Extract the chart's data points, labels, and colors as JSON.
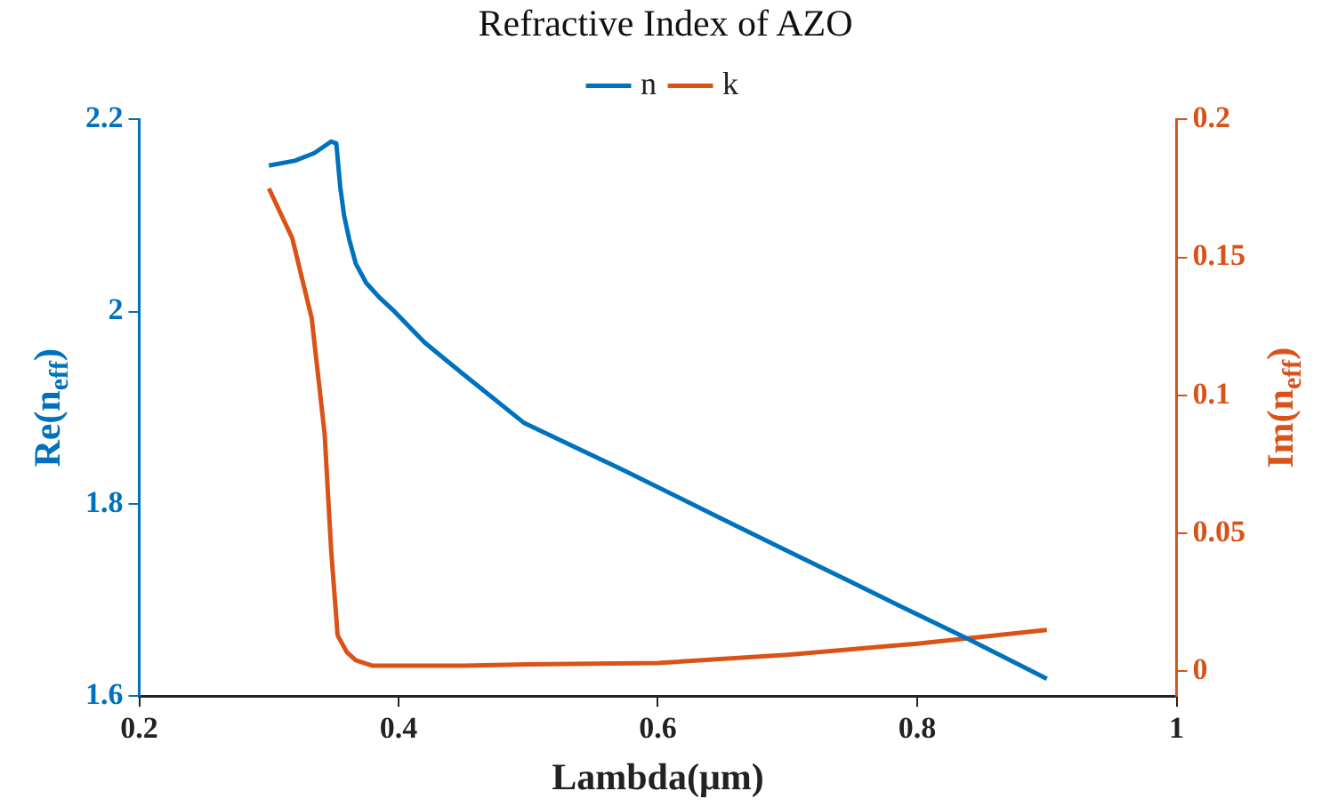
{
  "chart_data": {
    "type": "line",
    "title": "Refractive Index of AZO",
    "xlabel": "Lambda(μm)",
    "ylabel": "Re(n$_{eff}$)",
    "y2label": "Im(n$_{eff}$)",
    "xlim": [
      0.2,
      1
    ],
    "xticks": [
      0.2,
      0.4,
      0.6,
      0.8,
      1
    ],
    "ylim": [
      1.6,
      2.2
    ],
    "yticks": [
      1.6,
      1.8,
      2,
      2.2
    ],
    "y2lim": [
      -0.009,
      0.2
    ],
    "y2ticks": [
      0,
      0.05,
      0.1,
      0.15,
      0.2
    ],
    "grid": false,
    "legend": "top",
    "series": [
      {
        "name": "n",
        "color": "#0072bd",
        "x": [
          0.3,
          0.32,
          0.335,
          0.348,
          0.352,
          0.355,
          0.358,
          0.362,
          0.367,
          0.375,
          0.385,
          0.397,
          0.42,
          0.448,
          0.497,
          0.572,
          0.65,
          0.7,
          0.75,
          0.8,
          0.84,
          0.9
        ],
        "values": [
          2.152,
          2.157,
          2.165,
          2.177,
          2.175,
          2.13,
          2.1,
          2.075,
          2.05,
          2.03,
          2.015,
          2.0,
          1.968,
          1.937,
          1.884,
          1.836,
          1.784,
          1.751,
          1.718,
          1.685,
          1.659,
          1.618
        ]
      },
      {
        "name": "k",
        "color": "#d95319",
        "axis": "y2",
        "x": [
          0.3,
          0.318,
          0.333,
          0.343,
          0.348,
          0.353,
          0.36,
          0.367,
          0.38,
          0.397,
          0.45,
          0.5,
          0.6,
          0.7,
          0.8,
          0.9
        ],
        "values": [
          0.175,
          0.157,
          0.128,
          0.086,
          0.044,
          0.013,
          0.007,
          0.004,
          0.002,
          0.002,
          0.002,
          0.0025,
          0.003,
          0.006,
          0.01,
          0.015
        ]
      }
    ]
  }
}
